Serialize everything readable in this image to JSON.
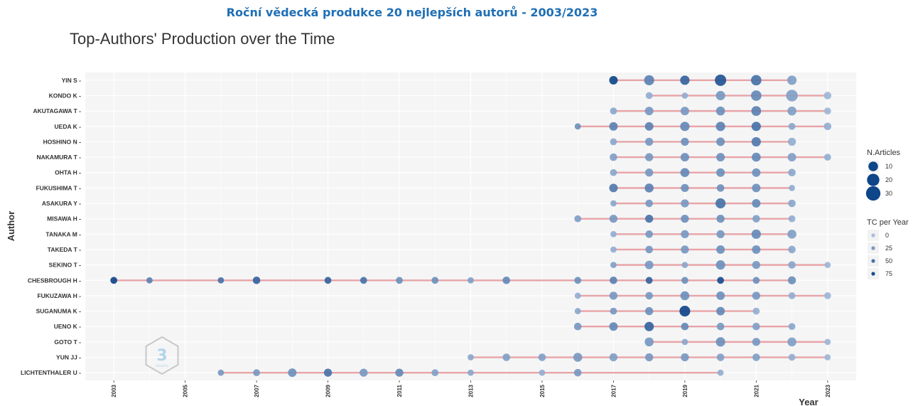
{
  "header": {
    "supertitle": "Roční vědecká produkce 20 nejlepších autorů - 2003/2023",
    "supertitle_color": "#1f6fb5"
  },
  "chart_data": {
    "type": "scatter",
    "title": "Top-Authors' Production over the Time",
    "xlabel": "Year",
    "ylabel": "Author",
    "xlim": [
      2002.2,
      2023.8
    ],
    "x_ticks": [
      2003,
      2005,
      2007,
      2009,
      2011,
      2013,
      2015,
      2017,
      2019,
      2021,
      2023
    ],
    "grid": true,
    "colors": {
      "panel": "#f5f5f5",
      "grid": "#ffffff",
      "line": "#e8a4a8",
      "point_dark": "#0f4589",
      "point_light": "#a6bddb"
    },
    "authors": [
      {
        "name": "YIN S",
        "range": [
          2017,
          2022
        ],
        "points": [
          [
            2017,
            6,
            80
          ],
          [
            2018,
            10,
            40
          ],
          [
            2019,
            8,
            60
          ],
          [
            2020,
            14,
            70
          ],
          [
            2021,
            11,
            50
          ],
          [
            2022,
            8,
            20
          ]
        ]
      },
      {
        "name": "KONDO K",
        "range": [
          2018,
          2023
        ],
        "points": [
          [
            2018,
            3,
            10
          ],
          [
            2019,
            2,
            10
          ],
          [
            2020,
            8,
            25
          ],
          [
            2021,
            11,
            35
          ],
          [
            2022,
            15,
            20
          ],
          [
            2023,
            4,
            5
          ]
        ]
      },
      {
        "name": "AKUTAGAWA T",
        "range": [
          2017,
          2023
        ],
        "points": [
          [
            2017,
            3,
            15
          ],
          [
            2018,
            6,
            25
          ],
          [
            2019,
            6,
            25
          ],
          [
            2020,
            7,
            30
          ],
          [
            2021,
            9,
            40
          ],
          [
            2022,
            7,
            20
          ],
          [
            2023,
            3,
            5
          ]
        ]
      },
      {
        "name": "UEDA K",
        "range": [
          2016,
          2023
        ],
        "points": [
          [
            2016,
            2,
            30
          ],
          [
            2017,
            6,
            40
          ],
          [
            2018,
            6,
            40
          ],
          [
            2019,
            8,
            35
          ],
          [
            2020,
            8,
            40
          ],
          [
            2021,
            8,
            50
          ],
          [
            2022,
            3,
            15
          ],
          [
            2023,
            4,
            10
          ]
        ]
      },
      {
        "name": "HOSHINO N",
        "range": [
          2017,
          2022
        ],
        "points": [
          [
            2017,
            3,
            15
          ],
          [
            2018,
            5,
            25
          ],
          [
            2019,
            5,
            30
          ],
          [
            2020,
            6,
            30
          ],
          [
            2021,
            8,
            45
          ],
          [
            2022,
            5,
            10
          ]
        ]
      },
      {
        "name": "NAKAMURA T",
        "range": [
          2017,
          2023
        ],
        "points": [
          [
            2017,
            4,
            20
          ],
          [
            2018,
            5,
            25
          ],
          [
            2019,
            6,
            30
          ],
          [
            2020,
            6,
            30
          ],
          [
            2021,
            7,
            35
          ],
          [
            2022,
            6,
            20
          ],
          [
            2023,
            3,
            10
          ]
        ]
      },
      {
        "name": "OHTA H",
        "range": [
          2017,
          2022
        ],
        "points": [
          [
            2017,
            3,
            15
          ],
          [
            2018,
            5,
            25
          ],
          [
            2019,
            7,
            35
          ],
          [
            2020,
            6,
            30
          ],
          [
            2021,
            6,
            30
          ],
          [
            2022,
            4,
            15
          ]
        ]
      },
      {
        "name": "FUKUSHIMA T",
        "range": [
          2017,
          2022
        ],
        "points": [
          [
            2017,
            6,
            45
          ],
          [
            2018,
            7,
            40
          ],
          [
            2019,
            5,
            30
          ],
          [
            2020,
            4,
            30
          ],
          [
            2021,
            6,
            30
          ],
          [
            2022,
            2,
            10
          ]
        ]
      },
      {
        "name": "ASAKURA Y",
        "range": [
          2017,
          2022
        ],
        "points": [
          [
            2017,
            2,
            15
          ],
          [
            2018,
            4,
            25
          ],
          [
            2019,
            5,
            25
          ],
          [
            2020,
            10,
            50
          ],
          [
            2021,
            6,
            35
          ],
          [
            2022,
            4,
            15
          ]
        ]
      },
      {
        "name": "MISAWA H",
        "range": [
          2016,
          2022
        ],
        "points": [
          [
            2016,
            3,
            20
          ],
          [
            2017,
            5,
            25
          ],
          [
            2018,
            5,
            50
          ],
          [
            2019,
            5,
            30
          ],
          [
            2020,
            5,
            30
          ],
          [
            2021,
            4,
            20
          ],
          [
            2022,
            3,
            10
          ]
        ]
      },
      {
        "name": "TANAKA M",
        "range": [
          2017,
          2022
        ],
        "points": [
          [
            2017,
            2,
            10
          ],
          [
            2018,
            4,
            25
          ],
          [
            2019,
            5,
            25
          ],
          [
            2020,
            5,
            25
          ],
          [
            2021,
            8,
            35
          ],
          [
            2022,
            7,
            20
          ]
        ]
      },
      {
        "name": "TAKEDA T",
        "range": [
          2017,
          2022
        ],
        "points": [
          [
            2017,
            2,
            10
          ],
          [
            2018,
            4,
            25
          ],
          [
            2019,
            5,
            25
          ],
          [
            2020,
            6,
            30
          ],
          [
            2021,
            6,
            30
          ],
          [
            2022,
            4,
            15
          ]
        ]
      },
      {
        "name": "SEKINO T",
        "range": [
          2017,
          2023
        ],
        "points": [
          [
            2017,
            2,
            20
          ],
          [
            2018,
            6,
            25
          ],
          [
            2019,
            2,
            15
          ],
          [
            2020,
            8,
            30
          ],
          [
            2021,
            5,
            25
          ],
          [
            2022,
            4,
            15
          ],
          [
            2023,
            2,
            5
          ]
        ]
      },
      {
        "name": "CHESBROUGH H",
        "range": [
          2003,
          2022
        ],
        "points": [
          [
            2003,
            3,
            80
          ],
          [
            2004,
            2,
            40
          ],
          [
            2006,
            2,
            50
          ],
          [
            2007,
            4,
            60
          ],
          [
            2009,
            3,
            60
          ],
          [
            2010,
            3,
            50
          ],
          [
            2011,
            3,
            30
          ],
          [
            2012,
            3,
            30
          ],
          [
            2013,
            2,
            20
          ],
          [
            2014,
            4,
            35
          ],
          [
            2016,
            3,
            30
          ],
          [
            2017,
            4,
            40
          ],
          [
            2018,
            3,
            60
          ],
          [
            2019,
            3,
            30
          ],
          [
            2020,
            3,
            75
          ],
          [
            2021,
            3,
            30
          ],
          [
            2022,
            5,
            30
          ]
        ]
      },
      {
        "name": "FUKUZAWA H",
        "range": [
          2016,
          2023
        ],
        "points": [
          [
            2016,
            2,
            10
          ],
          [
            2017,
            5,
            25
          ],
          [
            2018,
            4,
            25
          ],
          [
            2019,
            7,
            30
          ],
          [
            2020,
            6,
            30
          ],
          [
            2021,
            5,
            25
          ],
          [
            2022,
            3,
            10
          ],
          [
            2023,
            3,
            5
          ]
        ]
      },
      {
        "name": "SUGANUMA K",
        "range": [
          2016,
          2021
        ],
        "points": [
          [
            2016,
            2,
            15
          ],
          [
            2017,
            3,
            25
          ],
          [
            2018,
            5,
            30
          ],
          [
            2019,
            12,
            80
          ],
          [
            2020,
            6,
            35
          ],
          [
            2021,
            3,
            10
          ]
        ]
      },
      {
        "name": "UENO K",
        "range": [
          2016,
          2022
        ],
        "points": [
          [
            2016,
            4,
            25
          ],
          [
            2017,
            6,
            35
          ],
          [
            2018,
            8,
            60
          ],
          [
            2019,
            4,
            35
          ],
          [
            2020,
            4,
            25
          ],
          [
            2021,
            4,
            20
          ],
          [
            2022,
            3,
            15
          ]
        ]
      },
      {
        "name": "GOTO T",
        "range": [
          2018,
          2023
        ],
        "points": [
          [
            2018,
            7,
            25
          ],
          [
            2019,
            2,
            15
          ],
          [
            2020,
            8,
            30
          ],
          [
            2021,
            5,
            25
          ],
          [
            2022,
            7,
            20
          ],
          [
            2023,
            2,
            5
          ]
        ]
      },
      {
        "name": "YUN JJ",
        "range": [
          2013,
          2023
        ],
        "points": [
          [
            2013,
            2,
            15
          ],
          [
            2014,
            4,
            20
          ],
          [
            2015,
            4,
            20
          ],
          [
            2016,
            7,
            25
          ],
          [
            2017,
            5,
            20
          ],
          [
            2018,
            5,
            25
          ],
          [
            2019,
            5,
            25
          ],
          [
            2020,
            4,
            20
          ],
          [
            2021,
            4,
            20
          ],
          [
            2022,
            3,
            10
          ],
          [
            2023,
            2,
            5
          ]
        ]
      },
      {
        "name": "LICHTENTHALER U",
        "range": [
          2006,
          2020
        ],
        "points": [
          [
            2006,
            2,
            25
          ],
          [
            2007,
            3,
            25
          ],
          [
            2008,
            6,
            30
          ],
          [
            2009,
            5,
            50
          ],
          [
            2010,
            5,
            25
          ],
          [
            2011,
            5,
            35
          ],
          [
            2012,
            3,
            20
          ],
          [
            2013,
            2,
            15
          ],
          [
            2015,
            2,
            10
          ],
          [
            2016,
            4,
            25
          ],
          [
            2020,
            2,
            10
          ]
        ]
      }
    ],
    "legend_size": {
      "title": "N.Articles",
      "items": [
        {
          "label": "10",
          "value": 10
        },
        {
          "label": "20",
          "value": 20
        },
        {
          "label": "30",
          "value": 30
        }
      ]
    },
    "legend_color": {
      "title": "TC per Year",
      "items": [
        {
          "label": "0",
          "value": 0
        },
        {
          "label": "25",
          "value": 25
        },
        {
          "label": "50",
          "value": 50
        },
        {
          "label": "75",
          "value": 75
        }
      ]
    }
  },
  "watermark": {
    "glyph": "3",
    "text": "BiblioPro"
  }
}
